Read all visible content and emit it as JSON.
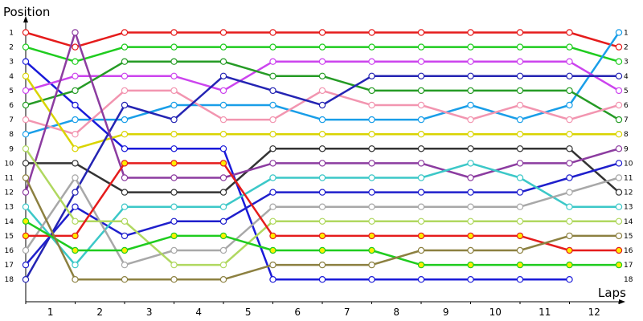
{
  "chart_data": {
    "type": "line",
    "ylabel": "Position",
    "xlabel": "Laps",
    "x_categories": [
      "1",
      "2",
      "3",
      "4",
      "5",
      "6",
      "7",
      "8",
      "9",
      "10",
      "11",
      "12"
    ],
    "y_ticks": [
      "1",
      "2",
      "3",
      "4",
      "5",
      "6",
      "7",
      "8",
      "9",
      "10",
      "11",
      "12",
      "13",
      "14",
      "15",
      "16",
      "17",
      "18"
    ],
    "right_ticks": [
      "1",
      "2",
      "3",
      "4",
      "5",
      "6",
      "7",
      "8",
      "9",
      "10",
      "11",
      "12",
      "13",
      "14",
      "15",
      "16",
      "17",
      "18"
    ],
    "y_range": [
      1,
      18
    ],
    "y_inverted": true,
    "grid": false,
    "x_points": [
      0,
      1,
      2,
      3,
      4,
      5,
      6,
      7,
      8,
      9,
      10,
      11,
      12
    ],
    "series": [
      {
        "color": "#e51c1c",
        "marker": "#ffffff",
        "values": [
          1,
          2,
          1,
          1,
          1,
          1,
          1,
          1,
          1,
          1,
          1,
          1,
          2
        ]
      },
      {
        "color": "#1fcc1f",
        "marker": "#ffffff",
        "values": [
          2,
          3,
          2,
          2,
          2,
          2,
          2,
          2,
          2,
          2,
          2,
          2,
          3
        ]
      },
      {
        "color": "#199ee8",
        "marker": "#ffffff",
        "values": [
          8,
          7,
          7,
          6,
          6,
          6,
          7,
          7,
          7,
          6,
          7,
          6,
          1
        ]
      },
      {
        "color": "#1a1ad9",
        "marker": "#ffffff",
        "values": [
          3,
          6,
          9,
          9,
          9,
          18,
          18,
          18,
          18,
          18,
          18,
          18,
          null
        ]
      },
      {
        "color": "#cc44ee",
        "marker": "#ffffff",
        "values": [
          5,
          4,
          4,
          4,
          5,
          3,
          3,
          3,
          3,
          3,
          3,
          3,
          5
        ]
      },
      {
        "color": "#259b25",
        "marker": "#ffffff",
        "values": [
          6,
          5,
          3,
          3,
          3,
          4,
          4,
          5,
          5,
          5,
          5,
          5,
          7
        ]
      },
      {
        "color": "#f295b0",
        "marker": "#ffffff",
        "values": [
          7,
          8,
          5,
          5,
          7,
          7,
          5,
          6,
          6,
          7,
          6,
          7,
          6
        ]
      },
      {
        "color": "#d9d400",
        "marker": "#ffffff",
        "values": [
          4,
          9,
          8,
          8,
          8,
          8,
          8,
          8,
          8,
          8,
          8,
          8,
          8
        ]
      },
      {
        "color": "#333333",
        "marker": "#ffffff",
        "values": [
          10,
          10,
          12,
          12,
          12,
          9,
          9,
          9,
          9,
          9,
          9,
          9,
          12
        ]
      },
      {
        "color": "#2424b3",
        "marker": "#ffffff",
        "values": [
          18,
          12,
          6,
          7,
          4,
          5,
          6,
          4,
          4,
          4,
          4,
          4,
          4
        ]
      },
      {
        "color": "#8c3ca0",
        "marker": "#ffffff",
        "values": [
          12,
          1,
          11,
          11,
          11,
          10,
          10,
          10,
          10,
          11,
          10,
          10,
          9
        ]
      },
      {
        "color": "#1f1fcc",
        "marker": "#ffffff",
        "values": [
          17,
          13,
          15,
          14,
          14,
          12,
          12,
          12,
          12,
          12,
          12,
          11,
          10
        ]
      },
      {
        "color": "#3cc8c8",
        "marker": "#ffffff",
        "values": [
          13,
          17,
          13,
          13,
          13,
          11,
          11,
          11,
          11,
          10,
          11,
          13,
          13
        ]
      },
      {
        "color": "#a8a8a8",
        "marker": "#ffffff",
        "values": [
          16,
          11,
          17,
          16,
          16,
          13,
          13,
          13,
          13,
          13,
          13,
          12,
          11
        ]
      },
      {
        "color": "#b0d860",
        "marker": "#ffffff",
        "values": [
          9,
          14,
          14,
          17,
          17,
          14,
          14,
          14,
          14,
          14,
          14,
          14,
          14
        ]
      },
      {
        "color": "#e51c1c",
        "marker": "#ffee00",
        "values": [
          15,
          15,
          10,
          10,
          10,
          15,
          15,
          15,
          15,
          15,
          15,
          16,
          16
        ]
      },
      {
        "color": "#1fcc1f",
        "marker": "#ffee00",
        "values": [
          14,
          16,
          16,
          15,
          15,
          16,
          16,
          16,
          17,
          17,
          17,
          17,
          17
        ]
      },
      {
        "color": "#8c8040",
        "marker": "#ffffff",
        "values": [
          11,
          18,
          18,
          18,
          18,
          17,
          17,
          17,
          16,
          16,
          16,
          15,
          15
        ]
      }
    ]
  }
}
